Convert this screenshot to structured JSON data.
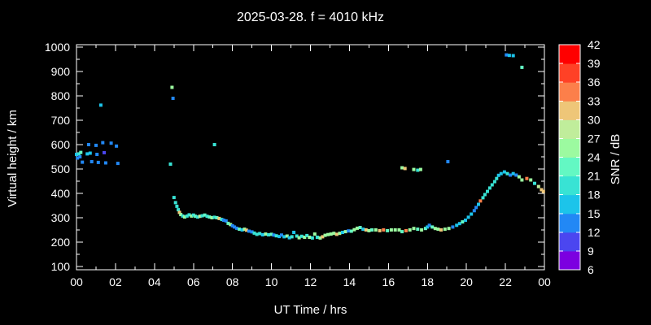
{
  "chart_data": {
    "type": "scatter",
    "title": "2025-03-28. f = 4010 kHz",
    "xlabel": "UT Time / hrs",
    "ylabel": "Virtual height / km",
    "xlim": [
      0,
      24
    ],
    "ylim": [
      100,
      1000
    ],
    "grid": false,
    "background_color": "#000000",
    "foreground_color": "#ffffff",
    "marker": "square",
    "marker_size_px": 4,
    "x_tick_hours": [
      0,
      2,
      4,
      6,
      8,
      10,
      12,
      14,
      16,
      18,
      20,
      22,
      24
    ],
    "x_tick_labels": [
      "00",
      "02",
      "04",
      "06",
      "08",
      "10",
      "12",
      "14",
      "16",
      "18",
      "20",
      "22",
      "00"
    ],
    "x_minor_tick_interval_hours": 1,
    "y_tick_km": [
      100,
      200,
      300,
      400,
      500,
      600,
      700,
      800,
      900,
      1000
    ],
    "y_tick_labels": [
      "100",
      "200",
      "300",
      "400",
      "500",
      "600",
      "700",
      "800",
      "900",
      "1000"
    ],
    "y_minor_tick_interval_km": 50,
    "colorbar": {
      "label": "SNR / dB",
      "levels_db": [
        6,
        9,
        12,
        15,
        18,
        21,
        24,
        27,
        30,
        33,
        36,
        39,
        42
      ],
      "segment_colors_low_to_high": [
        "#7c00e0",
        "#4b46f0",
        "#2288f5",
        "#1cc4ea",
        "#38e3d4",
        "#63f8c3",
        "#9cfaa0",
        "#c0ed9b",
        "#eec678",
        "#fc7f4a",
        "#ff4126",
        "#ff0000"
      ],
      "position": "right"
    },
    "points_format": [
      "ut_hours",
      "virtual_height_km",
      "snr_db"
    ],
    "series": [
      {
        "name": "main-echo-trace",
        "points": [
          [
            5.0,
            383,
            19
          ],
          [
            5.08,
            362,
            19
          ],
          [
            5.15,
            347,
            19
          ],
          [
            5.22,
            333,
            19
          ],
          [
            5.28,
            322,
            31
          ],
          [
            5.35,
            313,
            25
          ],
          [
            5.45,
            307,
            19
          ],
          [
            5.55,
            303,
            25
          ],
          [
            5.67,
            307,
            19
          ],
          [
            5.78,
            312,
            19
          ],
          [
            5.9,
            307,
            25
          ],
          [
            6.0,
            311,
            19
          ],
          [
            6.1,
            306,
            22
          ],
          [
            6.22,
            303,
            19
          ],
          [
            6.33,
            306,
            28
          ],
          [
            6.45,
            308,
            19
          ],
          [
            6.58,
            311,
            22
          ],
          [
            6.7,
            306,
            19
          ],
          [
            6.82,
            303,
            22
          ],
          [
            6.95,
            300,
            25
          ],
          [
            7.07,
            302,
            19
          ],
          [
            7.2,
            300,
            22
          ],
          [
            7.32,
            297,
            31
          ],
          [
            7.45,
            293,
            19
          ],
          [
            7.55,
            290,
            13
          ],
          [
            7.67,
            287,
            13
          ],
          [
            7.78,
            277,
            22
          ],
          [
            7.9,
            272,
            25
          ],
          [
            8.0,
            267,
            13
          ],
          [
            8.1,
            262,
            13
          ],
          [
            8.22,
            257,
            13
          ],
          [
            8.35,
            253,
            22
          ],
          [
            8.5,
            250,
            16
          ],
          [
            8.62,
            253,
            25
          ],
          [
            8.72,
            249,
            31
          ],
          [
            8.85,
            245,
            13
          ],
          [
            9.0,
            242,
            13
          ],
          [
            9.12,
            237,
            19
          ],
          [
            9.25,
            232,
            19
          ],
          [
            9.4,
            235,
            19
          ],
          [
            9.55,
            230,
            16
          ],
          [
            9.7,
            233,
            25
          ],
          [
            9.85,
            230,
            19
          ],
          [
            10.0,
            232,
            22
          ],
          [
            10.12,
            229,
            13
          ],
          [
            10.25,
            226,
            19
          ],
          [
            10.4,
            223,
            16
          ],
          [
            10.52,
            229,
            13
          ],
          [
            10.65,
            222,
            16
          ],
          [
            10.8,
            225,
            25
          ],
          [
            10.92,
            218,
            16
          ],
          [
            11.05,
            222,
            19
          ],
          [
            11.15,
            240,
            16
          ],
          [
            11.3,
            225,
            19
          ],
          [
            11.42,
            218,
            25
          ],
          [
            11.55,
            224,
            19
          ],
          [
            11.7,
            220,
            25
          ],
          [
            11.82,
            227,
            19
          ],
          [
            11.95,
            220,
            25
          ],
          [
            12.1,
            217,
            19
          ],
          [
            12.22,
            233,
            25
          ],
          [
            12.35,
            220,
            19
          ],
          [
            12.5,
            217,
            25
          ],
          [
            12.62,
            222,
            31
          ],
          [
            12.75,
            228,
            25
          ],
          [
            12.9,
            231,
            25
          ],
          [
            13.05,
            233,
            25
          ],
          [
            13.2,
            236,
            25
          ],
          [
            13.35,
            232,
            31
          ],
          [
            13.5,
            236,
            25
          ],
          [
            13.65,
            240,
            16
          ],
          [
            13.8,
            243,
            25
          ],
          [
            13.95,
            246,
            13
          ],
          [
            14.1,
            245,
            22
          ],
          [
            14.25,
            251,
            25
          ],
          [
            14.4,
            257,
            25
          ],
          [
            14.55,
            260,
            22
          ],
          [
            14.7,
            253,
            16
          ],
          [
            14.85,
            250,
            31
          ],
          [
            15.0,
            247,
            25
          ],
          [
            15.15,
            250,
            22
          ],
          [
            15.35,
            250,
            25
          ],
          [
            15.55,
            247,
            31
          ],
          [
            15.75,
            250,
            34
          ],
          [
            15.95,
            247,
            22
          ],
          [
            16.15,
            250,
            25
          ],
          [
            16.35,
            250,
            25
          ],
          [
            16.55,
            250,
            25
          ],
          [
            16.7,
            243,
            22
          ],
          [
            16.9,
            247,
            33
          ],
          [
            17.1,
            250,
            25
          ],
          [
            17.3,
            256,
            25
          ],
          [
            17.5,
            253,
            22
          ],
          [
            17.7,
            250,
            25
          ],
          [
            17.9,
            256,
            22
          ],
          [
            18.0,
            262,
            16
          ],
          [
            18.1,
            269,
            13
          ],
          [
            18.25,
            262,
            22
          ],
          [
            18.4,
            256,
            25
          ],
          [
            18.55,
            253,
            25
          ],
          [
            18.7,
            250,
            31
          ],
          [
            18.9,
            253,
            25
          ],
          [
            19.1,
            256,
            25
          ],
          [
            19.3,
            262,
            13
          ],
          [
            19.5,
            269,
            16
          ],
          [
            19.65,
            276,
            16
          ],
          [
            19.8,
            283,
            22
          ],
          [
            19.95,
            290,
            16
          ],
          [
            20.1,
            302,
            16
          ],
          [
            20.25,
            315,
            16
          ],
          [
            20.4,
            329,
            13
          ],
          [
            20.5,
            342,
            13
          ],
          [
            20.62,
            355,
            16
          ],
          [
            20.72,
            369,
            34
          ],
          [
            20.85,
            382,
            19
          ],
          [
            20.95,
            395,
            19
          ],
          [
            21.08,
            408,
            19
          ],
          [
            21.2,
            422,
            19
          ],
          [
            21.32,
            435,
            19
          ],
          [
            21.45,
            448,
            19
          ],
          [
            21.55,
            461,
            19
          ],
          [
            21.65,
            474,
            16
          ],
          [
            21.78,
            481,
            16
          ],
          [
            21.95,
            488,
            16
          ],
          [
            22.1,
            481,
            19
          ],
          [
            22.25,
            475,
            13
          ],
          [
            22.4,
            481,
            16
          ],
          [
            22.55,
            475,
            13
          ],
          [
            22.7,
            468,
            25
          ],
          [
            22.85,
            455,
            25
          ],
          [
            23.1,
            461,
            34
          ],
          [
            23.3,
            455,
            25
          ],
          [
            23.5,
            441,
            19
          ],
          [
            23.7,
            428,
            28
          ],
          [
            23.85,
            415,
            31
          ],
          [
            23.95,
            408,
            31
          ]
        ]
      },
      {
        "name": "scattered-echoes",
        "points": [
          [
            0.0,
            560,
            16
          ],
          [
            0.05,
            545,
            13
          ],
          [
            0.12,
            562,
            19
          ],
          [
            0.18,
            550,
            13
          ],
          [
            0.22,
            568,
            22
          ],
          [
            0.3,
            528,
            13
          ],
          [
            0.55,
            562,
            16
          ],
          [
            0.62,
            600,
            13
          ],
          [
            0.7,
            565,
            16
          ],
          [
            0.78,
            530,
            13
          ],
          [
            1.0,
            597,
            13
          ],
          [
            1.05,
            560,
            13
          ],
          [
            1.12,
            527,
            13
          ],
          [
            1.25,
            762,
            16
          ],
          [
            1.35,
            608,
            13
          ],
          [
            1.42,
            567,
            10
          ],
          [
            1.5,
            525,
            13
          ],
          [
            1.78,
            606,
            13
          ],
          [
            2.05,
            594,
            13
          ],
          [
            2.12,
            523,
            13
          ],
          [
            4.82,
            520,
            19
          ],
          [
            4.9,
            835,
            25
          ],
          [
            4.95,
            790,
            13
          ],
          [
            7.08,
            600,
            19
          ],
          [
            16.7,
            505,
            25
          ],
          [
            16.85,
            502,
            31
          ],
          [
            17.3,
            498,
            25
          ],
          [
            17.5,
            495,
            19
          ],
          [
            17.65,
            498,
            25
          ],
          [
            19.05,
            530,
            13
          ],
          [
            22.05,
            968,
            13
          ],
          [
            22.2,
            966,
            16
          ],
          [
            22.4,
            965,
            16
          ],
          [
            22.85,
            917,
            22
          ]
        ]
      }
    ]
  }
}
